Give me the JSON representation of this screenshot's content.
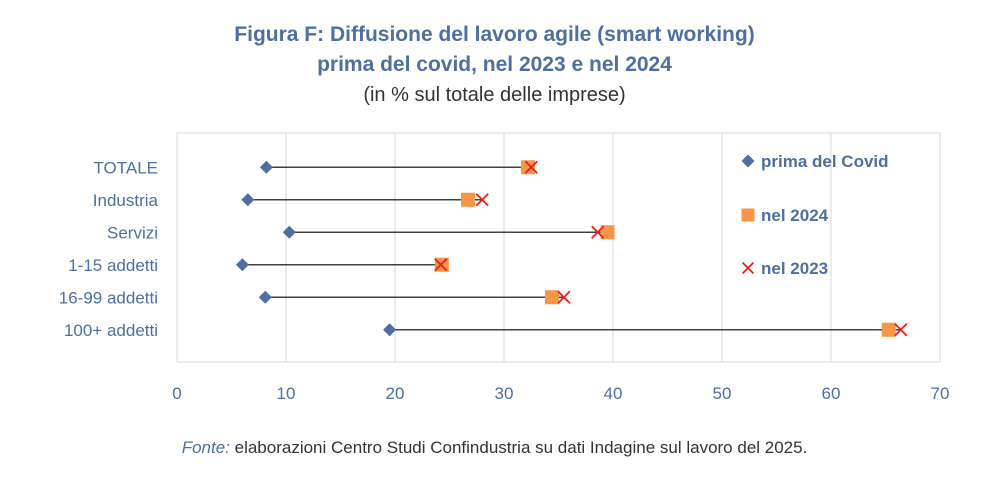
{
  "title_line1": "Figura F: Diffusione del lavoro agile (smart working)",
  "title_line2": "prima del covid, nel 2023 e nel 2024",
  "subtitle": "(in % sul totale delle imprese)",
  "source_label": "Fonte:",
  "source_text": " elaborazioni Centro Studi Confindustria su dati Indagine sul lavoro del 2025.",
  "colors": {
    "pre_covid": "#4e6fa0",
    "y2024": "#f79646",
    "y2023": "#e8221c",
    "connector": "#404040",
    "grid": "#d9d9d9",
    "text": "#4e6fa0"
  },
  "chart_data": {
    "type": "dot-plot",
    "orientation": "horizontal",
    "categories": [
      "TOTALE",
      "Industria",
      "Servizi",
      "1-15 addetti",
      "16-99 addetti",
      "100+ addetti"
    ],
    "series": [
      {
        "name": "prima del Covid",
        "marker": "diamond",
        "values": [
          8.2,
          6.5,
          10.3,
          6.0,
          8.1,
          19.5
        ]
      },
      {
        "name": "nel 2024",
        "marker": "square",
        "values": [
          32.2,
          26.7,
          39.5,
          24.3,
          34.4,
          65.3
        ]
      },
      {
        "name": "nel 2023",
        "marker": "x",
        "values": [
          32.5,
          28.0,
          38.6,
          24.2,
          35.5,
          66.4
        ]
      }
    ],
    "xlim": [
      0,
      70
    ],
    "xticks": [
      0,
      10,
      20,
      30,
      40,
      50,
      60,
      70
    ],
    "legend_position": "top-right",
    "grid": "vertical"
  }
}
